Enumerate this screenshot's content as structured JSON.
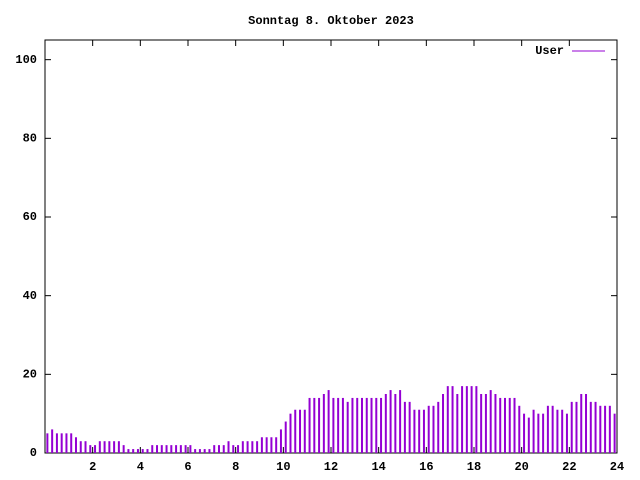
{
  "chart_data": {
    "type": "impulse",
    "title": "Sonntag 8. Oktober 2023",
    "x": [
      0.1,
      0.3,
      0.5,
      0.7,
      0.9,
      1.1,
      1.3,
      1.5,
      1.7,
      1.9,
      2.1,
      2.3,
      2.5,
      2.7,
      2.9,
      3.1,
      3.3,
      3.5,
      3.7,
      3.9,
      4.1,
      4.3,
      4.5,
      4.7,
      4.9,
      5.1,
      5.3,
      5.5,
      5.7,
      5.9,
      6.1,
      6.3,
      6.5,
      6.7,
      6.9,
      7.1,
      7.3,
      7.5,
      7.7,
      7.9,
      8.1,
      8.3,
      8.5,
      8.7,
      8.9,
      9.1,
      9.3,
      9.5,
      9.7,
      9.9,
      10.1,
      10.3,
      10.5,
      10.7,
      10.9,
      11.1,
      11.3,
      11.5,
      11.7,
      11.9,
      12.1,
      12.3,
      12.5,
      12.7,
      12.9,
      13.1,
      13.3,
      13.5,
      13.7,
      13.9,
      14.1,
      14.3,
      14.5,
      14.7,
      14.9,
      15.1,
      15.3,
      15.5,
      15.7,
      15.9,
      16.1,
      16.3,
      16.5,
      16.7,
      16.9,
      17.1,
      17.3,
      17.5,
      17.7,
      17.9,
      18.1,
      18.3,
      18.5,
      18.7,
      18.9,
      19.1,
      19.3,
      19.5,
      19.7,
      19.9,
      20.1,
      20.3,
      20.5,
      20.7,
      20.9,
      21.1,
      21.3,
      21.5,
      21.7,
      21.9,
      22.1,
      22.3,
      22.5,
      22.7,
      22.9,
      23.1,
      23.3,
      23.5,
      23.7,
      23.9
    ],
    "series": [
      {
        "name": "User",
        "color": "#9400d3",
        "values": [
          5,
          6,
          5,
          5,
          5,
          5,
          4,
          3,
          3,
          2,
          2,
          3,
          3,
          3,
          3,
          3,
          2,
          1,
          1,
          1,
          1,
          1,
          2,
          2,
          2,
          2,
          2,
          2,
          2,
          2,
          2,
          1,
          1,
          1,
          1,
          2,
          2,
          2,
          3,
          2,
          2,
          3,
          3,
          3,
          3,
          4,
          4,
          4,
          4,
          6,
          8,
          10,
          11,
          11,
          11,
          14,
          14,
          14,
          15,
          16,
          14,
          14,
          14,
          13,
          14,
          14,
          14,
          14,
          14,
          14,
          14,
          15,
          16,
          15,
          16,
          13,
          13,
          11,
          11,
          11,
          12,
          12,
          13,
          15,
          17,
          17,
          15,
          17,
          17,
          17,
          17,
          15,
          15,
          16,
          15,
          14,
          14,
          14,
          14,
          12,
          10,
          9,
          11,
          10,
          10,
          12,
          12,
          11,
          11,
          10,
          13,
          13,
          15,
          15,
          13,
          13,
          12,
          12,
          12,
          10
        ]
      }
    ],
    "xlim": [
      0,
      24
    ],
    "xticks": [
      2,
      4,
      6,
      8,
      10,
      12,
      14,
      16,
      18,
      20,
      22,
      24
    ],
    "ylim": [
      0,
      105
    ],
    "yticks": [
      0,
      20,
      40,
      60,
      80,
      100
    ],
    "legend": "top-right"
  }
}
